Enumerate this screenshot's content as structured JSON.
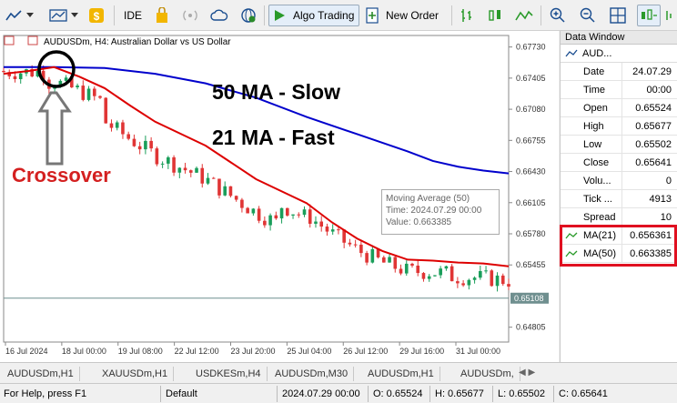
{
  "toolbar": {
    "ide_label": "IDE",
    "algo_trading_label": "Algo Trading",
    "new_order_label": "New Order"
  },
  "chart": {
    "title": "AUDUSDm, H4:  Australian Dollar vs US Dollar"
  },
  "annotations": {
    "slow_label": "50 MA - Slow",
    "fast_label": "21 MA - Fast",
    "crossover_label": "Crossover",
    "slow_color": "#1a1aff",
    "crossover_color": "#d42020"
  },
  "tooltip": {
    "line1": "Moving Average (50)",
    "line2": "Time: 2024.07.29 00:00",
    "line3": "Value: 0.663385"
  },
  "chart_data": {
    "type": "line",
    "symbol": "AUDUSDm",
    "timeframe": "H4",
    "title": "AUDUSDm, H4:  Australian Dollar vs US Dollar",
    "y_ticks": [
      "0.67730",
      "0.67405",
      "0.67080",
      "0.66755",
      "0.66430",
      "0.66105",
      "0.65780",
      "0.65455",
      "0.64805"
    ],
    "current_price_label": "0.65108",
    "x_ticks": [
      "16 Jul 2024",
      "18 Jul 00:00",
      "19 Jul 08:00",
      "22 Jul 12:00",
      "23 Jul 20:00",
      "25 Jul 04:00",
      "26 Jul 12:00",
      "29 Jul 16:00",
      "31 Jul 00:00"
    ],
    "ylim": [
      0.6465,
      0.6785
    ],
    "series": [
      {
        "name": "MA(50)",
        "color": "#0000cc",
        "x": [
          0,
          10,
          20,
          30,
          40,
          50,
          60,
          70,
          80,
          85,
          90,
          95,
          100
        ],
        "values": [
          0.6752,
          0.6752,
          0.6751,
          0.6745,
          0.6735,
          0.672,
          0.67,
          0.6682,
          0.6664,
          0.6654,
          0.6648,
          0.6644,
          0.6641
        ]
      },
      {
        "name": "MA(21)",
        "color": "#dd0000",
        "x": [
          0,
          5,
          10,
          15,
          20,
          25,
          30,
          40,
          50,
          60,
          65,
          70,
          75,
          80,
          85,
          90,
          95,
          100
        ],
        "values": [
          0.6745,
          0.6748,
          0.6752,
          0.6742,
          0.673,
          0.6712,
          0.6695,
          0.667,
          0.6635,
          0.661,
          0.659,
          0.6573,
          0.656,
          0.6551,
          0.655,
          0.6548,
          0.6547,
          0.6544
        ]
      }
    ]
  },
  "data_window": {
    "header": "Data Window",
    "symbol": "AUD...",
    "rows": [
      {
        "key": "Date",
        "value": "24.07.29"
      },
      {
        "key": "Time",
        "value": "00:00"
      },
      {
        "key": "Open",
        "value": "0.65524"
      },
      {
        "key": "High",
        "value": "0.65677"
      },
      {
        "key": "Low",
        "value": "0.65502"
      },
      {
        "key": "Close",
        "value": "0.65641"
      },
      {
        "key": "Volu...",
        "value": "0"
      },
      {
        "key": "Tick ...",
        "value": "4913"
      },
      {
        "key": "Spread",
        "value": "10"
      }
    ],
    "ma_rows": [
      {
        "key": "MA(21)",
        "value": "0.656361"
      },
      {
        "key": "MA(50)",
        "value": "0.663385"
      }
    ],
    "highlight_color": "#e01020"
  },
  "tabs": [
    "AUDUSDm,H1",
    "XAUUSDm,H1",
    "USDKESm,H4",
    "AUDUSDm,M30",
    "AUDUSDm,H1",
    "AUDUSDm,"
  ],
  "status": {
    "help": "For Help, press F1",
    "profile": "Default",
    "datetime": "2024.07.29 00:00",
    "open": "O: 0.65524",
    "high": "H: 0.65677",
    "low": "L: 0.65502",
    "close": "C: 0.65641"
  }
}
